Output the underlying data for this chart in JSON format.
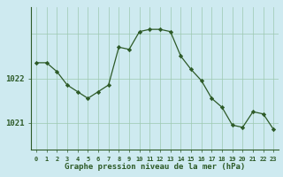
{
  "x": [
    0,
    1,
    2,
    3,
    4,
    5,
    6,
    7,
    8,
    9,
    10,
    11,
    12,
    13,
    14,
    15,
    16,
    17,
    18,
    19,
    20,
    21,
    22,
    23
  ],
  "y": [
    1022.35,
    1022.35,
    1022.15,
    1021.85,
    1021.7,
    1021.55,
    1021.7,
    1021.85,
    1022.7,
    1022.65,
    1023.05,
    1023.1,
    1023.1,
    1023.05,
    1022.5,
    1022.2,
    1021.95,
    1021.55,
    1021.35,
    1020.95,
    1020.9,
    1021.25,
    1021.2,
    1020.85
  ],
  "xlim": [
    -0.5,
    23.5
  ],
  "ylim": [
    1020.4,
    1023.6
  ],
  "xlabel": "Graphe pression niveau de la mer (hPa)",
  "bg_color": "#ceeaf0",
  "line_color": "#2d5a27",
  "marker_color": "#2d5a27",
  "grid_color": "#9dc8b0",
  "tick_label_color": "#2d5a27",
  "xlabel_color": "#2d5a27",
  "ylabel_color": "#2d5a27",
  "axis_color": "#2d5a27"
}
